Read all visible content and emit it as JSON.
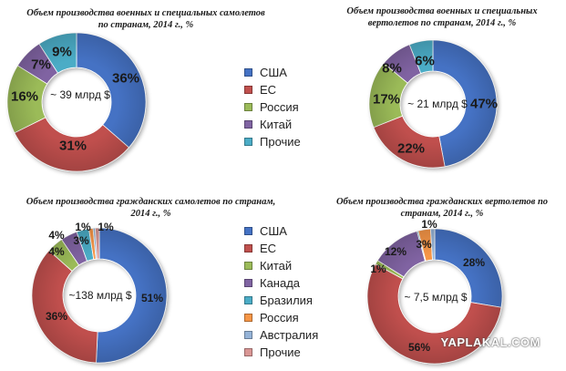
{
  "chart_data": [
    {
      "id": "c1",
      "type": "pie",
      "title": "Объем производства военных и специальных самолетов по странам, 2014 г., %",
      "title_lines": [
        "Объем производства военных и специальных самолетов",
        "по странам, 2014 г., %"
      ],
      "center_label": "~ 39 млрд $",
      "slices": [
        {
          "name": "США",
          "value": 36,
          "label": "36%",
          "color": "#4472c4"
        },
        {
          "name": "ЕС",
          "value": 31,
          "label": "31%",
          "color": "#c0504d"
        },
        {
          "name": "Россия",
          "value": 16,
          "label": "16%",
          "color": "#9bbb59"
        },
        {
          "name": "Китай",
          "value": 7,
          "label": "7%",
          "color": "#8064a2"
        },
        {
          "name": "Прочие",
          "value": 9,
          "label": "9%",
          "color": "#4bacc6"
        }
      ]
    },
    {
      "id": "c2",
      "type": "pie",
      "title": "Объем производства военных и специальных вертолетов по странам, 2014 г., %",
      "title_lines": [
        "Объем производства военных и специальных",
        "вертолетов по странам, 2014 г., %"
      ],
      "center_label": "~ 21 млрд $",
      "slices": [
        {
          "name": "США",
          "value": 47,
          "label": "47%",
          "color": "#4472c4"
        },
        {
          "name": "ЕС",
          "value": 22,
          "label": "22%",
          "color": "#c0504d"
        },
        {
          "name": "Россия",
          "value": 17,
          "label": "17%",
          "color": "#9bbb59"
        },
        {
          "name": "Китай",
          "value": 8,
          "label": "8%",
          "color": "#8064a2"
        },
        {
          "name": "Прочие",
          "value": 6,
          "label": "6%",
          "color": "#4bacc6"
        }
      ]
    },
    {
      "id": "c3",
      "type": "pie",
      "title": "Объем производства гражданских самолетов по странам, 2014 г., %",
      "title_lines": [
        "Объем производства гражданских самолетов по странам,",
        "2014 г., %"
      ],
      "center_label": "~138 млрд $",
      "slices": [
        {
          "name": "США",
          "value": 51,
          "label": "51%",
          "color": "#4472c4"
        },
        {
          "name": "ЕС",
          "value": 36,
          "label": "36%",
          "color": "#c0504d"
        },
        {
          "name": "Китай",
          "value": 4,
          "label": "4%",
          "color": "#9bbb59"
        },
        {
          "name": "Канада",
          "value": 4,
          "label": "4%",
          "color": "#8064a2"
        },
        {
          "name": "Бразилия",
          "value": 3,
          "label": "3%",
          "color": "#4bacc6"
        },
        {
          "name": "Россия",
          "value": 1,
          "label": "1%",
          "color": "#f79646"
        },
        {
          "name": "Австралия",
          "value": 0.5,
          "label": "",
          "color": "#95b3d7"
        },
        {
          "name": "Прочие",
          "value": 1,
          "label": "1%",
          "color": "#d99694"
        }
      ]
    },
    {
      "id": "c4",
      "type": "pie",
      "title": "Объем производства гражданских вертолетов по странам, 2014 г., %",
      "title_lines": [
        "Объем производства гражданских вертолетов по",
        "странам, 2014 г., %"
      ],
      "center_label": "~ 7,5 млрд $",
      "slices": [
        {
          "name": "США",
          "value": 28,
          "label": "28%",
          "color": "#4472c4"
        },
        {
          "name": "ЕС",
          "value": 56,
          "label": "56%",
          "color": "#c0504d"
        },
        {
          "name": "Китай",
          "value": 1,
          "label": "1%",
          "color": "#9bbb59"
        },
        {
          "name": "Канада",
          "value": 12,
          "label": "12%",
          "color": "#8064a2"
        },
        {
          "name": "Бразилия",
          "value": 0.3,
          "label": "",
          "color": "#4bacc6"
        },
        {
          "name": "Россия",
          "value": 3,
          "label": "3%",
          "color": "#f79646"
        },
        {
          "name": "Австралия",
          "value": 1,
          "label": "1%",
          "color": "#95b3d7"
        }
      ]
    }
  ],
  "legend_top": [
    {
      "label": "США",
      "color": "#4472c4"
    },
    {
      "label": "ЕС",
      "color": "#c0504d"
    },
    {
      "label": "Россия",
      "color": "#9bbb59"
    },
    {
      "label": "Китай",
      "color": "#8064a2"
    },
    {
      "label": "Прочие",
      "color": "#4bacc6"
    }
  ],
  "legend_bottom": [
    {
      "label": "США",
      "color": "#4472c4"
    },
    {
      "label": "ЕС",
      "color": "#c0504d"
    },
    {
      "label": "Китай",
      "color": "#9bbb59"
    },
    {
      "label": "Канада",
      "color": "#8064a2"
    },
    {
      "label": "Бразилия",
      "color": "#4bacc6"
    },
    {
      "label": "Россия",
      "color": "#f79646"
    },
    {
      "label": "Австралия",
      "color": "#95b3d7"
    },
    {
      "label": "Прочие",
      "color": "#d99694"
    }
  ],
  "watermark": "YAPLAKAL.COM"
}
